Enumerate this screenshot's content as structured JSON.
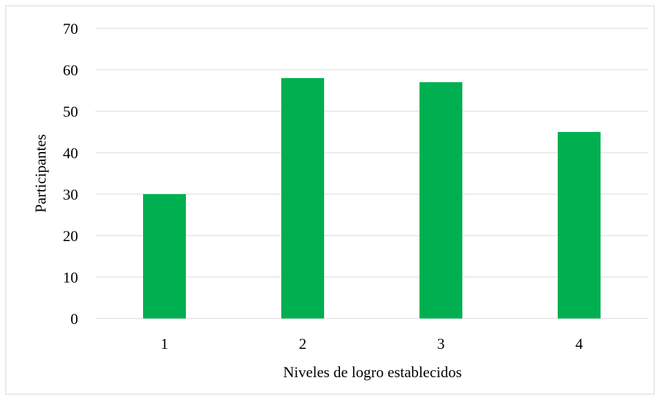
{
  "chart_data": {
    "type": "bar",
    "categories": [
      "1",
      "2",
      "3",
      "4"
    ],
    "values": [
      30,
      58,
      57,
      45
    ],
    "title": "",
    "xlabel": "Niveles de logro establecidos",
    "ylabel": "Participantes",
    "ylim": [
      0,
      70
    ],
    "yticks": [
      "0",
      "10",
      "20",
      "30",
      "40",
      "50",
      "60",
      "70"
    ],
    "grid": true,
    "legend": "none",
    "bar_color": "#00B050",
    "gridline_color": "#d9d9d9"
  }
}
